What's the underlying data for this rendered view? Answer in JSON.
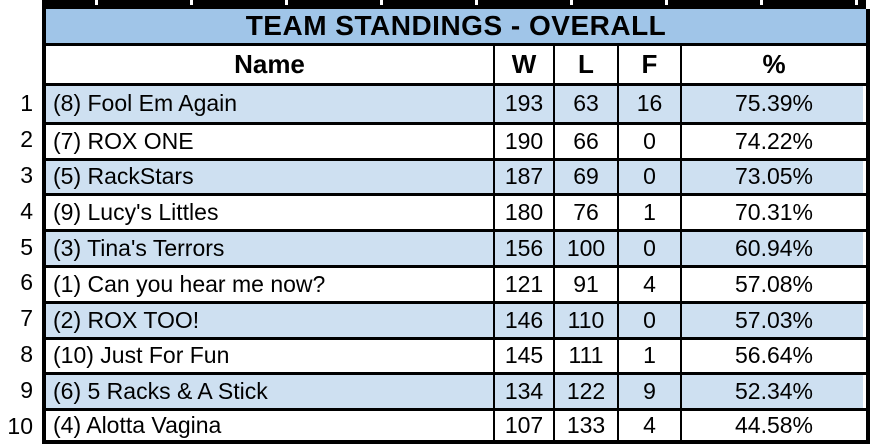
{
  "title": "TEAM STANDINGS - OVERALL",
  "columns": {
    "name": "Name",
    "w": "W",
    "l": "L",
    "f": "F",
    "pct": "%"
  },
  "rows": [
    {
      "rank": "1",
      "name": "(8) Fool Em Again",
      "w": "193",
      "l": "63",
      "f": "16",
      "pct": "75.39%"
    },
    {
      "rank": "2",
      "name": "(7) ROX ONE",
      "w": "190",
      "l": "66",
      "f": "0",
      "pct": "74.22%"
    },
    {
      "rank": "3",
      "name": "(5) RackStars",
      "w": "187",
      "l": "69",
      "f": "0",
      "pct": "73.05%"
    },
    {
      "rank": "4",
      "name": "(9) Lucy's Littles",
      "w": "180",
      "l": "76",
      "f": "1",
      "pct": "70.31%"
    },
    {
      "rank": "5",
      "name": "(3) Tina's Terrors",
      "w": "156",
      "l": "100",
      "f": "0",
      "pct": "60.94%"
    },
    {
      "rank": "6",
      "name": "(1) Can you hear me now?",
      "w": "121",
      "l": "91",
      "f": "4",
      "pct": "57.08%"
    },
    {
      "rank": "7",
      "name": "(2) ROX TOO!",
      "w": "146",
      "l": "110",
      "f": "0",
      "pct": "57.03%"
    },
    {
      "rank": "8",
      "name": "(10) Just For Fun",
      "w": "145",
      "l": "111",
      "f": "1",
      "pct": "56.64%"
    },
    {
      "rank": "9",
      "name": "(6) 5 Racks & A Stick",
      "w": "134",
      "l": "122",
      "f": "9",
      "pct": "52.34%"
    },
    {
      "rank": "10",
      "name": "(4) Alotta Vagina",
      "w": "107",
      "l": "133",
      "f": "4",
      "pct": "44.58%"
    }
  ],
  "colors": {
    "title_bg": "#A0C5E8",
    "row_alt_bg": "#CEE0F1",
    "row_bg": "#FFFFFF",
    "border": "#000000",
    "text": "#000000"
  }
}
